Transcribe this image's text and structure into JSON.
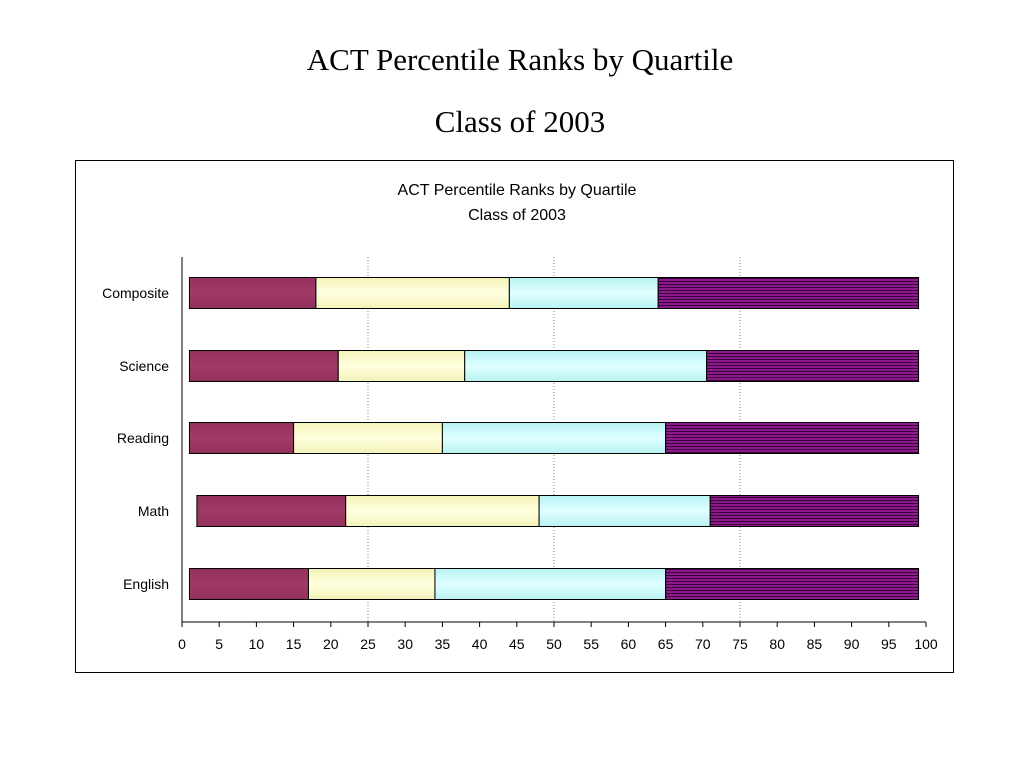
{
  "slide": {
    "title_line1": "ACT Percentile Ranks by Quartile",
    "title_line2": "Class of 2003"
  },
  "chart_data": {
    "type": "bar",
    "orientation": "horizontal",
    "stacked": true,
    "title": "ACT Percentile Ranks by Quartile",
    "subtitle": "Class of 2003",
    "categories": [
      "Composite",
      "Science",
      "Reading",
      "Math",
      "English"
    ],
    "xlim": [
      0,
      100
    ],
    "xticks": [
      0,
      5,
      10,
      15,
      20,
      25,
      30,
      35,
      40,
      45,
      50,
      55,
      60,
      65,
      70,
      75,
      80,
      85,
      90,
      95,
      100
    ],
    "gridlines_x": [
      25,
      50,
      75
    ],
    "legend": "none",
    "segments": [
      {
        "boundaries": [
          1,
          18,
          44,
          64,
          99
        ]
      },
      {
        "boundaries": [
          1,
          21,
          38,
          70.5,
          99
        ]
      },
      {
        "boundaries": [
          1,
          15,
          35,
          65,
          99
        ]
      },
      {
        "boundaries": [
          2,
          22,
          48,
          71,
          99
        ]
      },
      {
        "boundaries": [
          1,
          17,
          34,
          65,
          99
        ]
      }
    ],
    "segment_colors": [
      "#9b3461",
      "#fdfccc",
      "#ccfdfc",
      "#8c1a8c"
    ]
  }
}
